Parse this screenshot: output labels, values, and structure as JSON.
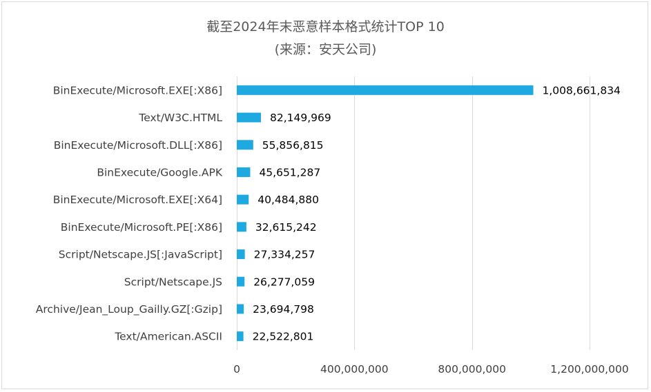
{
  "chart_data": {
    "type": "bar",
    "orientation": "horizontal",
    "title": "截至2024年末恶意样本格式统计TOP 10",
    "subtitle": "(来源：安天公司)",
    "categories": [
      "BinExecute/Microsoft.EXE[:X86]",
      "Text/W3C.HTML",
      "BinExecute/Microsoft.DLL[:X86]",
      "BinExecute/Google.APK",
      "BinExecute/Microsoft.EXE[:X64]",
      "BinExecute/Microsoft.PE[:X86]",
      "Script/Netscape.JS[:JavaScript]",
      "Script/Netscape.JS",
      "Archive/Jean_Loup_Gailly.GZ[:Gzip]",
      "Text/American.ASCII"
    ],
    "values": [
      1008661834,
      82149969,
      55856815,
      45651287,
      40484880,
      32615242,
      27334257,
      26277059,
      23694798,
      22522801
    ],
    "value_labels": [
      "1,008,661,834",
      "82,149,969",
      "55,856,815",
      "45,651,287",
      "40,484,880",
      "32,615,242",
      "27,334,257",
      "26,277,059",
      "23,694,798",
      "22,522,801"
    ],
    "xlim": [
      0,
      1200000000
    ],
    "xticks": [
      0,
      400000000,
      800000000,
      1200000000
    ],
    "xtick_labels": [
      "0",
      "400,000,000",
      "800,000,000",
      "1,200,000,000"
    ],
    "bar_color": "#1fa9e1",
    "grid": true,
    "legend": "none"
  }
}
